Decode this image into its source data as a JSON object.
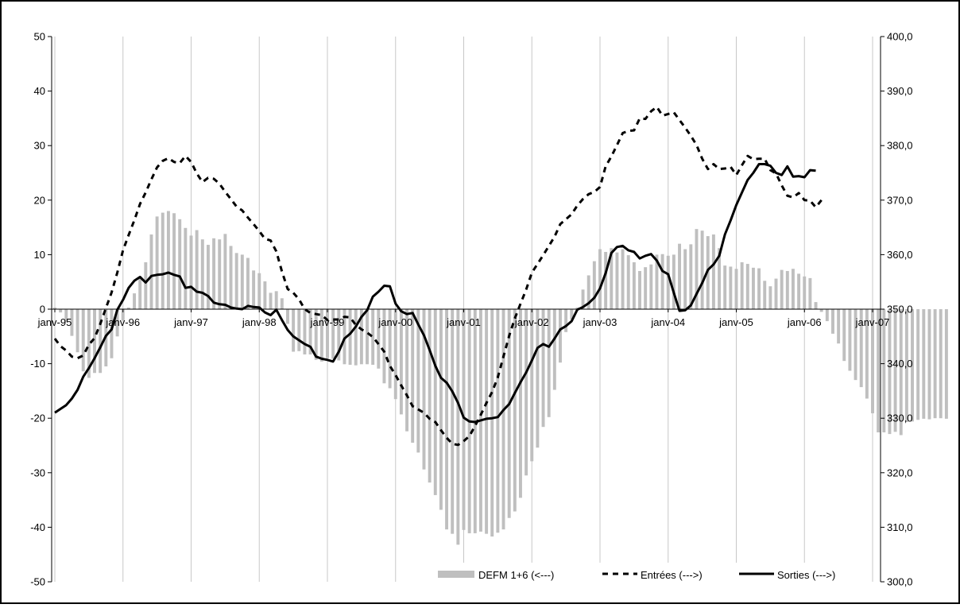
{
  "chart_data": {
    "type": "combo",
    "title": "",
    "xlabel": "",
    "ylabel_left": "",
    "ylabel_right": "",
    "x_tick_labels": [
      "janv-95",
      "janv-96",
      "janv-97",
      "janv-98",
      "janv-99",
      "janv-00",
      "janv-01",
      "janv-02",
      "janv-03",
      "janv-04",
      "janv-05",
      "janv-06",
      "janv-07"
    ],
    "y_left": {
      "min": -50,
      "max": 50,
      "step": 10,
      "tick_labels": [
        "50",
        "40",
        "30",
        "20",
        "10",
        "0",
        "-10",
        "-20",
        "-30",
        "-40",
        "-50"
      ]
    },
    "y_right": {
      "min": 300,
      "max": 400,
      "step": 10,
      "tick_labels": [
        "400,0",
        "390,0",
        "380,0",
        "370,0",
        "360,0",
        "350,0",
        "340,0",
        "330,0",
        "320,0",
        "310,0",
        "300,0"
      ]
    },
    "legend": {
      "placement": "bottom-right",
      "items": [
        "DEFM 1+6 (<---)",
        "Entrées (--->)",
        "Sorties (--->)"
      ]
    },
    "series": [
      {
        "name": "DEFM 1+6 (<---)",
        "type": "bar",
        "axis": "left",
        "color": "#bfbfbf",
        "values": [
          0.3,
          -0.6,
          -2.3,
          -4.9,
          -7.9,
          -11.4,
          -12.6,
          -11.7,
          -11.7,
          -10.5,
          -9.0,
          -5.0,
          -2.1,
          0.3,
          2.9,
          6.0,
          8.6,
          13.7,
          17.0,
          17.7,
          18.0,
          17.6,
          16.5,
          14.9,
          13.5,
          14.5,
          12.8,
          11.8,
          13.0,
          12.8,
          13.8,
          11.6,
          10.3,
          10.0,
          9.4,
          7.1,
          6.6,
          5.1,
          3.0,
          3.3,
          2.0,
          -2.7,
          -7.8,
          -7.7,
          -8.3,
          -8.3,
          -9.3,
          -9.6,
          -9.0,
          -9.1,
          -9.4,
          -10.1,
          -10.2,
          -10.3,
          -10.1,
          -10.1,
          -10.2,
          -10.9,
          -13.6,
          -14.5,
          -16.5,
          -19.3,
          -22.4,
          -24.5,
          -26.3,
          -29.4,
          -31.8,
          -34.1,
          -36.8,
          -40.4,
          -41.2,
          -43.2,
          -40.5,
          -41.1,
          -41.1,
          -40.8,
          -41.2,
          -41.7,
          -41.0,
          -40.4,
          -38.3,
          -37.1,
          -34.6,
          -30.5,
          -27.9,
          -25.4,
          -21.6,
          -19.8,
          -14.8,
          -9.8,
          -4.2,
          -1.9,
          0.3,
          3.6,
          6.2,
          8.8,
          11.0,
          10.5,
          11.2,
          10.4,
          11.0,
          9.9,
          8.6,
          7.0,
          7.7,
          8.2,
          10.0,
          10.1,
          9.8,
          10.0,
          12.0,
          11.0,
          11.9,
          14.7,
          14.4,
          13.4,
          13.7,
          11.2,
          8.0,
          7.8,
          7.4,
          8.6,
          8.3,
          7.6,
          7.5,
          5.2,
          4.2,
          5.6,
          7.2,
          7.0,
          7.4,
          6.5,
          6.0,
          5.7,
          1.3,
          -0.5,
          -2.2,
          -4.5,
          -6.3,
          -9.5,
          -11.3,
          -13.0,
          -14.3,
          -16.4,
          -19.1,
          -22.6,
          -22.6,
          -22.9,
          -22.5,
          -23.1,
          -20.7,
          -20.6,
          -20.3,
          -20.1,
          -20.2,
          -20.0,
          -20.0,
          -20.1
        ]
      },
      {
        "name": "Entrées (--->)",
        "type": "line",
        "axis": "right",
        "color": "#000000",
        "line_style": "dashed",
        "values": [
          344.6,
          343.2,
          342.4,
          341.3,
          341.0,
          341.5,
          343.5,
          344.7,
          347.3,
          350.2,
          353.1,
          356.7,
          360.8,
          363.6,
          366.3,
          369.3,
          371.4,
          373.8,
          376.0,
          377.2,
          377.7,
          377.0,
          376.8,
          378.1,
          377.0,
          374.9,
          373.3,
          374.1,
          373.9,
          373.0,
          371.5,
          370.2,
          368.8,
          368.1,
          366.8,
          365.6,
          364.3,
          362.9,
          362.6,
          360.6,
          356.9,
          353.7,
          353.0,
          351.8,
          350.0,
          349.3,
          349.1,
          348.9,
          348.0,
          348.1,
          348.1,
          348.6,
          348.5,
          347.1,
          346.3,
          345.7,
          344.9,
          343.6,
          342.2,
          339.6,
          337.9,
          336.0,
          334.2,
          332.2,
          331.6,
          331.0,
          329.9,
          329.3,
          327.8,
          326.4,
          325.3,
          325.1,
          325.8,
          326.7,
          328.6,
          330.6,
          332.8,
          334.8,
          337.5,
          341.3,
          345.1,
          348.3,
          351.0,
          353.6,
          356.7,
          358.3,
          359.9,
          361.6,
          363.3,
          365.6,
          366.5,
          367.4,
          369.0,
          370.2,
          371.1,
          371.5,
          372.4,
          376.2,
          378.0,
          380.1,
          382.3,
          382.7,
          382.8,
          385.0,
          384.9,
          386.3,
          387.1,
          385.5,
          385.8,
          386.1,
          384.7,
          383.3,
          381.8,
          380.1,
          377.6,
          375.7,
          376.6,
          375.7,
          375.8,
          376.1,
          374.6,
          376.4,
          378.1,
          377.5,
          377.6,
          377.6,
          375.5,
          374.9,
          372.7,
          370.8,
          370.5,
          371.3,
          370.0,
          369.9,
          368.7,
          370.0
        ]
      },
      {
        "name": "Sorties (--->)",
        "type": "line",
        "axis": "right",
        "color": "#000000",
        "line_style": "solid",
        "values": [
          331.0,
          331.7,
          332.4,
          333.6,
          335.2,
          337.6,
          339.2,
          341.0,
          343.0,
          345.1,
          346.3,
          349.9,
          351.7,
          353.9,
          355.2,
          355.9,
          354.9,
          356.1,
          356.3,
          356.4,
          356.7,
          356.3,
          356.0,
          353.9,
          354.1,
          353.2,
          353.0,
          352.4,
          351.2,
          350.9,
          350.8,
          350.3,
          350.1,
          350.0,
          350.6,
          350.4,
          350.3,
          349.4,
          348.9,
          349.9,
          348.0,
          346.2,
          345.0,
          344.3,
          343.6,
          343.1,
          341.3,
          340.9,
          340.7,
          340.4,
          342.2,
          344.6,
          345.5,
          346.8,
          348.6,
          349.8,
          352.3,
          353.2,
          354.3,
          354.2,
          351.0,
          349.6,
          349.1,
          349.3,
          347.2,
          345.2,
          342.5,
          339.6,
          337.4,
          336.5,
          334.9,
          332.8,
          330.1,
          329.4,
          329.3,
          329.6,
          329.9,
          330.0,
          330.2,
          331.5,
          332.6,
          334.6,
          336.6,
          338.4,
          340.6,
          342.9,
          343.6,
          343.1,
          344.6,
          346.3,
          346.9,
          347.8,
          349.9,
          350.4,
          351.1,
          352.1,
          353.8,
          356.6,
          360.3,
          361.4,
          361.6,
          360.8,
          360.5,
          359.3,
          359.8,
          360.1,
          358.9,
          357.0,
          356.4,
          353.0,
          349.7,
          349.8,
          350.7,
          352.8,
          354.8,
          357.2,
          358.2,
          359.8,
          363.7,
          366.3,
          369.1,
          371.4,
          373.7,
          375.0,
          376.6,
          376.6,
          376.3,
          375.0,
          374.6,
          376.2,
          374.3,
          374.4,
          374.2,
          375.5,
          375.4
        ]
      }
    ]
  }
}
